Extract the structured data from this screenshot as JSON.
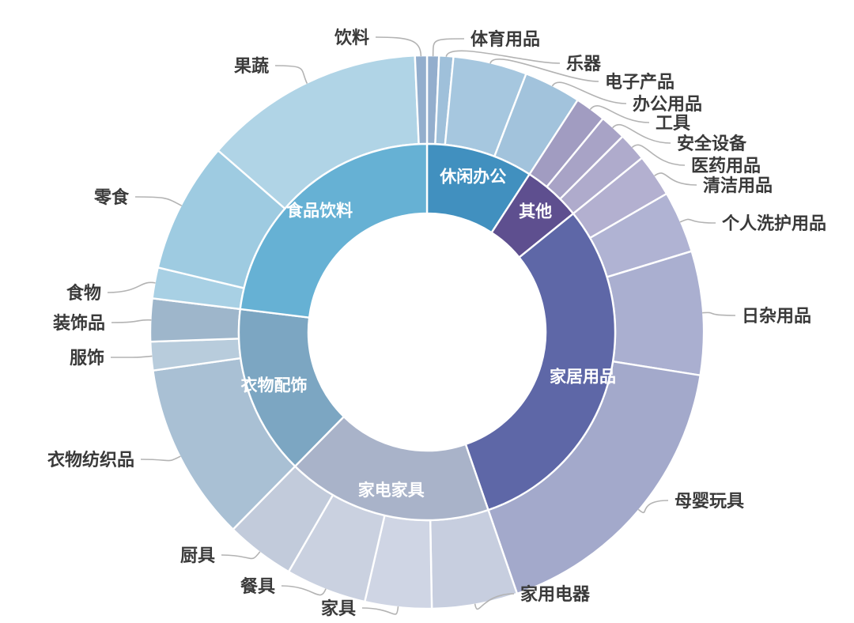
{
  "figure": {
    "background": "#ffffff",
    "outer_label_color": "#3a3a3a",
    "inner_label_color": "#ffffff",
    "leader_line_color": "#b3b3b3"
  },
  "chart_data": {
    "type": "sunburst",
    "title": "",
    "rings": 2,
    "angle_unit": "degrees",
    "angle_total": 360,
    "legend_position": "none",
    "categories": [
      {
        "label": "休闲办公",
        "color": "#4190bf",
        "span_deg": 33,
        "children": [
          {
            "label": "体育用品",
            "color": "#93aecd",
            "span_deg": 2.5
          },
          {
            "label": "乐器",
            "color": "#9fc0da",
            "span_deg": 3
          },
          {
            "label": "电子产品",
            "color": "#a6c7df",
            "span_deg": 15.5
          },
          {
            "label": "办公用品",
            "color": "#a2c3dc",
            "span_deg": 12
          }
        ]
      },
      {
        "label": "其他",
        "color": "#5e4f8f",
        "span_deg": 18,
        "children": [
          {
            "label": "工具",
            "color": "#a19cc1",
            "span_deg": 6.5
          },
          {
            "label": "安全设备",
            "color": "#a8a3c6",
            "span_deg": 5.5
          },
          {
            "label": "医药用品",
            "color": "#afabcc",
            "span_deg": 6
          }
        ]
      },
      {
        "label": "家居用品",
        "color": "#5e67a7",
        "span_deg": 110,
        "children": [
          {
            "label": "清洁用品",
            "color": "#b3b0d0",
            "span_deg": 9
          },
          {
            "label": "个人洗护用品",
            "color": "#b0b3d3",
            "span_deg": 13
          },
          {
            "label": "日杂用品",
            "color": "#aaafd0",
            "span_deg": 26
          },
          {
            "label": "母婴玩具",
            "color": "#a3a9cb",
            "span_deg": 62
          }
        ]
      },
      {
        "label": "家电家具",
        "color": "#a9b3c9",
        "span_deg": 63.5,
        "children": [
          {
            "label": "家用电器",
            "color": "#c7cedf",
            "span_deg": 18
          },
          {
            "label": "家具",
            "color": "#cfd5e4",
            "span_deg": 14
          },
          {
            "label": "餐具",
            "color": "#cad1e0",
            "span_deg": 17
          },
          {
            "label": "厨具",
            "color": "#c2cbdb",
            "span_deg": 14.5
          }
        ]
      },
      {
        "label": "衣物配饰",
        "color": "#7ca6c2",
        "span_deg": 52.5,
        "children": [
          {
            "label": "衣物纺织品",
            "color": "#a9c0d4",
            "span_deg": 37.5
          },
          {
            "label": "服饰",
            "color": "#b8ccdc",
            "span_deg": 6
          },
          {
            "label": "装饰品",
            "color": "#9eb6cb",
            "span_deg": 9
          }
        ]
      },
      {
        "label": "食品饮料",
        "color": "#66b1d4",
        "span_deg": 83,
        "children": [
          {
            "label": "食物",
            "color": "#a8d0e4",
            "span_deg": 6.5
          },
          {
            "label": "零食",
            "color": "#9ecbe1",
            "span_deg": 27.5
          },
          {
            "label": "果蔬",
            "color": "#b0d4e6",
            "span_deg": 46.5
          },
          {
            "label": "饮料",
            "color": "#93aecd",
            "span_deg": 2.5
          }
        ]
      }
    ]
  }
}
